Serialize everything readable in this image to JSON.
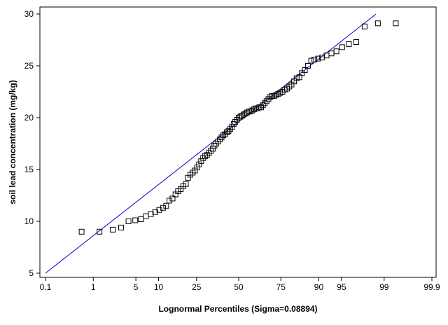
{
  "chart_data": {
    "type": "scatter",
    "title": "",
    "xlabel": "Lognormal Percentiles (Sigma=0.08894)",
    "ylabel": "soil lead concentration (mg/kg)",
    "x_scale": "normal-probability",
    "x_ticks": [
      0.1,
      1,
      5,
      10,
      25,
      50,
      75,
      90,
      95,
      99,
      99.9
    ],
    "x_tick_labels": [
      "0.1",
      "1",
      "5",
      "10",
      "25",
      "50",
      "75",
      "90",
      "95",
      "99",
      "99.9"
    ],
    "ylim": [
      5,
      30
    ],
    "y_ticks": [
      5,
      10,
      15,
      20,
      25,
      30
    ],
    "grid": false,
    "legend": "none",
    "colors": {
      "points": "#000000",
      "fit_line": "#0000cc",
      "frame": "#000000"
    },
    "fit_line": {
      "x": [
        0.1,
        98.6
      ],
      "y": [
        5.0,
        30.0
      ]
    },
    "series": [
      {
        "marker": "open-square",
        "x": [
          0.6,
          1.3,
          2.2,
          3.0,
          3.9,
          4.9,
          5.9,
          6.9,
          8.0,
          9.1,
          10.2,
          11.3,
          12.3,
          13.4,
          14.5,
          15.6,
          16.6,
          17.7,
          18.8,
          19.9,
          20.9,
          22.0,
          23.1,
          24.2,
          25.3,
          26.3,
          27.4,
          28.5,
          29.6,
          30.6,
          31.7,
          32.8,
          33.9,
          34.9,
          36.0,
          37.1,
          38.2,
          39.2,
          40.3,
          41.4,
          42.5,
          43.5,
          44.6,
          45.7,
          46.8,
          47.8,
          48.9,
          50.0,
          51.1,
          52.2,
          53.2,
          54.3,
          55.4,
          56.5,
          57.5,
          58.6,
          59.7,
          60.8,
          61.8,
          62.9,
          64.0,
          65.1,
          66.1,
          67.2,
          68.3,
          69.4,
          70.4,
          71.5,
          72.6,
          73.7,
          74.7,
          75.8,
          76.9,
          78.0,
          79.1,
          80.1,
          81.2,
          82.3,
          83.4,
          84.4,
          85.5,
          86.6,
          87.7,
          88.7,
          89.8,
          90.9,
          92.0,
          93.1,
          94.1,
          95.1,
          96.1,
          97.0,
          97.8,
          98.7,
          99.4
        ],
        "y": [
          9.0,
          9.0,
          9.2,
          9.4,
          10.0,
          10.1,
          10.2,
          10.5,
          10.7,
          10.9,
          11.1,
          11.3,
          11.5,
          12.0,
          12.2,
          12.6,
          12.9,
          13.1,
          13.4,
          13.6,
          14.2,
          14.5,
          14.7,
          14.9,
          15.2,
          15.5,
          15.8,
          16.1,
          16.3,
          16.4,
          16.6,
          16.8,
          17.0,
          17.3,
          17.5,
          17.7,
          17.9,
          18.1,
          18.3,
          18.4,
          18.6,
          18.7,
          18.9,
          19.1,
          19.4,
          19.6,
          19.8,
          20.0,
          20.1,
          20.2,
          20.3,
          20.4,
          20.5,
          20.6,
          20.6,
          20.7,
          20.8,
          20.9,
          20.9,
          21.0,
          21.0,
          21.2,
          21.4,
          21.6,
          21.8,
          22.0,
          22.1,
          22.1,
          22.2,
          22.3,
          22.4,
          22.5,
          22.7,
          22.8,
          23.0,
          23.2,
          23.5,
          23.8,
          23.9,
          24.3,
          24.6,
          25.0,
          25.5,
          25.6,
          25.7,
          25.8,
          26.0,
          26.2,
          26.4,
          26.8,
          27.1,
          27.3,
          28.8,
          29.1,
          29.1
        ]
      }
    ]
  }
}
